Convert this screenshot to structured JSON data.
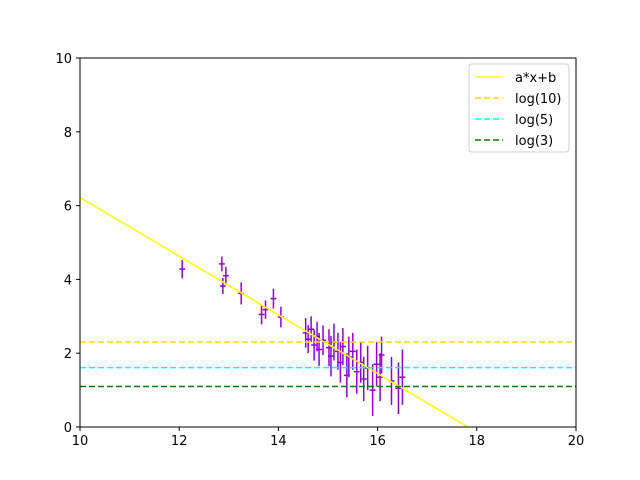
{
  "chart_data": {
    "type": "scatter",
    "title": "",
    "xlabel": "",
    "ylabel": "",
    "xlim": [
      10,
      20
    ],
    "ylim": [
      0,
      10
    ],
    "xticks": [
      10,
      12,
      14,
      16,
      18,
      20
    ],
    "yticks": [
      0,
      2,
      4,
      6,
      8,
      10
    ],
    "grid": false,
    "legend_position": "top-right",
    "errorbar_series": {
      "color": "#9400d3",
      "points": [
        {
          "x": 12.06,
          "y": 4.28,
          "xerr": 0.06,
          "yerr": 0.25
        },
        {
          "x": 12.86,
          "y": 4.42,
          "xerr": 0.06,
          "yerr": 0.2
        },
        {
          "x": 12.88,
          "y": 3.82,
          "xerr": 0.06,
          "yerr": 0.22
        },
        {
          "x": 12.94,
          "y": 4.1,
          "xerr": 0.06,
          "yerr": 0.24
        },
        {
          "x": 13.25,
          "y": 3.62,
          "xerr": 0.06,
          "yerr": 0.3
        },
        {
          "x": 13.66,
          "y": 3.05,
          "xerr": 0.06,
          "yerr": 0.27
        },
        {
          "x": 13.74,
          "y": 3.18,
          "xerr": 0.06,
          "yerr": 0.25
        },
        {
          "x": 13.9,
          "y": 3.48,
          "xerr": 0.06,
          "yerr": 0.27
        },
        {
          "x": 14.05,
          "y": 2.98,
          "xerr": 0.06,
          "yerr": 0.28
        },
        {
          "x": 14.55,
          "y": 2.55,
          "xerr": 0.06,
          "yerr": 0.4
        },
        {
          "x": 14.6,
          "y": 2.38,
          "xerr": 0.06,
          "yerr": 0.38
        },
        {
          "x": 14.66,
          "y": 2.65,
          "xerr": 0.06,
          "yerr": 0.35
        },
        {
          "x": 14.72,
          "y": 2.22,
          "xerr": 0.06,
          "yerr": 0.42
        },
        {
          "x": 14.78,
          "y": 2.45,
          "xerr": 0.06,
          "yerr": 0.4
        },
        {
          "x": 14.82,
          "y": 2.1,
          "xerr": 0.06,
          "yerr": 0.45
        },
        {
          "x": 14.9,
          "y": 2.35,
          "xerr": 0.06,
          "yerr": 0.4
        },
        {
          "x": 15.02,
          "y": 2.15,
          "xerr": 0.06,
          "yerr": 0.5
        },
        {
          "x": 15.06,
          "y": 1.92,
          "xerr": 0.06,
          "yerr": 0.55
        },
        {
          "x": 15.12,
          "y": 2.3,
          "xerr": 0.06,
          "yerr": 0.5
        },
        {
          "x": 15.2,
          "y": 2.05,
          "xerr": 0.06,
          "yerr": 0.5
        },
        {
          "x": 15.25,
          "y": 1.75,
          "xerr": 0.06,
          "yerr": 0.55
        },
        {
          "x": 15.3,
          "y": 2.18,
          "xerr": 0.06,
          "yerr": 0.5
        },
        {
          "x": 15.38,
          "y": 1.4,
          "xerr": 0.06,
          "yerr": 0.6
        },
        {
          "x": 15.42,
          "y": 1.9,
          "xerr": 0.06,
          "yerr": 0.55
        },
        {
          "x": 15.5,
          "y": 2.05,
          "xerr": 0.06,
          "yerr": 0.5
        },
        {
          "x": 15.58,
          "y": 1.5,
          "xerr": 0.06,
          "yerr": 0.6
        },
        {
          "x": 15.66,
          "y": 1.75,
          "xerr": 0.06,
          "yerr": 0.55
        },
        {
          "x": 15.72,
          "y": 1.3,
          "xerr": 0.06,
          "yerr": 0.6
        },
        {
          "x": 15.8,
          "y": 1.6,
          "xerr": 0.06,
          "yerr": 0.6
        },
        {
          "x": 15.9,
          "y": 1.0,
          "xerr": 0.06,
          "yerr": 0.7
        },
        {
          "x": 15.98,
          "y": 1.7,
          "xerr": 0.06,
          "yerr": 0.6
        },
        {
          "x": 16.05,
          "y": 1.35,
          "xerr": 0.06,
          "yerr": 0.65
        },
        {
          "x": 16.08,
          "y": 1.95,
          "xerr": 0.06,
          "yerr": 0.5
        },
        {
          "x": 16.28,
          "y": 1.25,
          "xerr": 0.06,
          "yerr": 0.65
        },
        {
          "x": 16.42,
          "y": 1.05,
          "xerr": 0.06,
          "yerr": 0.7
        },
        {
          "x": 16.5,
          "y": 1.35,
          "xerr": 0.06,
          "yerr": 0.75
        }
      ]
    },
    "series": [
      {
        "name": "a*x+b",
        "kind": "line",
        "color": "#ffff00",
        "dash": "solid",
        "x": [
          10,
          17.82
        ],
        "y": [
          6.22,
          0
        ]
      },
      {
        "name": "log(10)",
        "kind": "hline",
        "color": "#ffd700",
        "dash": "dashed",
        "y": 2.303
      },
      {
        "name": "log(5)",
        "kind": "hline",
        "color": "#00ffff",
        "dash": "dashed",
        "y": 1.609
      },
      {
        "name": "log(3)",
        "kind": "hline",
        "color": "#008000",
        "dash": "dashed",
        "y": 1.099
      }
    ]
  }
}
